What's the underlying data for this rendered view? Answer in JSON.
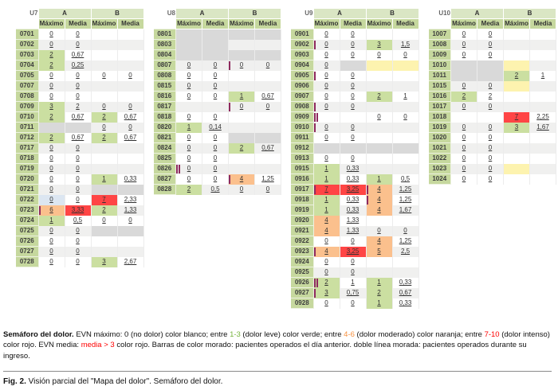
{
  "table_headers": {
    "groups": [
      "A",
      "B"
    ],
    "subcolumns": [
      "Máximo",
      "Media",
      "Máximo",
      "Media"
    ]
  },
  "tables": [
    {
      "unit": "U7",
      "rows": [
        {
          "id": "0701",
          "c": [
            "0",
            "0",
            null,
            null
          ]
        },
        {
          "id": "0702",
          "c": [
            "0",
            "0",
            null,
            null
          ]
        },
        {
          "id": "0703",
          "c": [
            [
              "2",
              "g"
            ],
            "0,67",
            null,
            null
          ]
        },
        {
          "id": "0704",
          "c": [
            [
              "2",
              "g"
            ],
            "0,25",
            null,
            null
          ]
        },
        {
          "id": "0705",
          "c": [
            "0",
            "0",
            "0",
            "0"
          ]
        },
        {
          "id": "0707",
          "c": [
            "0",
            "0",
            null,
            null
          ]
        },
        {
          "id": "0708",
          "c": [
            "0",
            "0",
            null,
            null
          ]
        },
        {
          "id": "0709",
          "c": [
            [
              "3",
              "g"
            ],
            "2",
            "0",
            "0"
          ]
        },
        {
          "id": "0710",
          "c": [
            [
              "2",
              "g"
            ],
            "0,67",
            [
              "2",
              "g"
            ],
            "0,67"
          ]
        },
        {
          "id": "0711",
          "c": [
            [
              "",
              "e"
            ],
            [
              "",
              "e"
            ],
            "0",
            "0"
          ]
        },
        {
          "id": "0712",
          "c": [
            [
              "2",
              "g"
            ],
            "0,67",
            [
              "2",
              "g"
            ],
            "0,67"
          ]
        },
        {
          "id": "0717",
          "c": [
            "0",
            "0",
            null,
            null
          ]
        },
        {
          "id": "0718",
          "c": [
            "0",
            "0",
            null,
            null
          ]
        },
        {
          "id": "0719",
          "c": [
            "0",
            "0",
            null,
            null
          ]
        },
        {
          "id": "0720",
          "c": [
            "0",
            "0",
            [
              "1",
              "g"
            ],
            "0,33"
          ]
        },
        {
          "id": "0721",
          "c": [
            "0",
            "0",
            [
              "",
              "e"
            ],
            [
              "",
              "e"
            ]
          ]
        },
        {
          "id": "0722",
          "c": [
            [
              "0",
              "b"
            ],
            "0",
            [
              "7",
              "r"
            ],
            "2,33"
          ]
        },
        {
          "id": "0723",
          "c": [
            [
              "6",
              "o",
              "1"
            ],
            [
              "3,33",
              "r"
            ],
            [
              "2",
              "g"
            ],
            "1,33"
          ]
        },
        {
          "id": "0724",
          "c": [
            [
              "1",
              "g"
            ],
            "0,5",
            "0",
            "0"
          ]
        },
        {
          "id": "0725",
          "c": [
            "0",
            "0",
            [
              "",
              "e"
            ],
            [
              "",
              "e"
            ]
          ]
        },
        {
          "id": "0726",
          "c": [
            "0",
            "0",
            null,
            null
          ]
        },
        {
          "id": "0727",
          "c": [
            "0",
            "0",
            null,
            null
          ]
        },
        {
          "id": "0728",
          "c": [
            "0",
            "0",
            [
              "3",
              "g"
            ],
            "2,67"
          ]
        }
      ]
    },
    {
      "unit": "U8",
      "rows": [
        {
          "id": "0801",
          "c": [
            [
              "",
              "e"
            ],
            [
              "",
              "e"
            ],
            [
              "",
              "e"
            ],
            [
              "",
              "e"
            ]
          ]
        },
        {
          "id": "0803",
          "c": [
            [
              "",
              "e"
            ],
            [
              "",
              "e"
            ],
            null,
            null
          ]
        },
        {
          "id": "0804",
          "c": [
            [
              "",
              "e"
            ],
            [
              "",
              "e"
            ],
            [
              "",
              "e"
            ],
            [
              "",
              "e"
            ]
          ]
        },
        {
          "id": "0807",
          "c": [
            "0",
            "0",
            [
              "0",
              "",
              "1"
            ],
            "0"
          ]
        },
        {
          "id": "0808",
          "c": [
            "0",
            "0",
            null,
            null
          ]
        },
        {
          "id": "0815",
          "c": [
            "0",
            "0",
            null,
            null
          ]
        },
        {
          "id": "0816",
          "c": [
            "0",
            "0",
            [
              "1",
              "g"
            ],
            "0,67"
          ]
        },
        {
          "id": "0817",
          "c": [
            null,
            null,
            [
              "0",
              "",
              "1"
            ],
            "0"
          ]
        },
        {
          "id": "0818",
          "c": [
            "0",
            "0",
            null,
            null
          ]
        },
        {
          "id": "0820",
          "c": [
            [
              "1",
              "g"
            ],
            "0,14",
            null,
            null
          ]
        },
        {
          "id": "0821",
          "c": [
            "0",
            "0",
            [
              "",
              "e"
            ],
            [
              "",
              "e"
            ]
          ]
        },
        {
          "id": "0824",
          "c": [
            "0",
            "0",
            [
              "2",
              "g"
            ],
            "0,67"
          ]
        },
        {
          "id": "0825",
          "c": [
            "0",
            "0",
            null,
            null
          ]
        },
        {
          "id": "0826",
          "c": [
            [
              "0",
              "",
              "2"
            ],
            "0",
            null,
            null
          ]
        },
        {
          "id": "0827",
          "c": [
            "0",
            "0",
            [
              "4",
              "o",
              "1"
            ],
            "1,25"
          ]
        },
        {
          "id": "0828",
          "c": [
            [
              "2",
              "g"
            ],
            "0,5",
            "0",
            "0"
          ]
        }
      ]
    },
    {
      "unit": "U9",
      "rows": [
        {
          "id": "0901",
          "c": [
            "0",
            "0",
            null,
            null
          ]
        },
        {
          "id": "0902",
          "c": [
            [
              "0",
              "",
              "1"
            ],
            "0",
            [
              "3",
              "g"
            ],
            "1,5"
          ]
        },
        {
          "id": "0903",
          "c": [
            "0",
            "0",
            "0",
            "0"
          ]
        },
        {
          "id": "0904",
          "c": [
            "0",
            [
              "",
              "e"
            ],
            [
              "",
              "y"
            ],
            [
              "",
              "y"
            ]
          ]
        },
        {
          "id": "0905",
          "c": [
            [
              "0",
              "",
              "1"
            ],
            "0",
            null,
            null
          ]
        },
        {
          "id": "0906",
          "c": [
            "0",
            "0",
            null,
            null
          ]
        },
        {
          "id": "0907",
          "c": [
            "0",
            "0",
            [
              "2",
              "g"
            ],
            "1"
          ]
        },
        {
          "id": "0908",
          "c": [
            [
              "0",
              "",
              "1"
            ],
            "0",
            null,
            null
          ]
        },
        {
          "id": "0909",
          "c": [
            [
              "",
              "",
              "2"
            ],
            "",
            "0",
            "0"
          ]
        },
        {
          "id": "0910",
          "c": [
            [
              "0",
              "",
              "1"
            ],
            "0",
            null,
            null
          ]
        },
        {
          "id": "0911",
          "c": [
            "0",
            "0",
            null,
            null
          ]
        },
        {
          "id": "0912",
          "c": [
            [
              "",
              "e"
            ],
            [
              "",
              "e"
            ],
            [
              "",
              "e"
            ],
            [
              "",
              "e"
            ]
          ]
        },
        {
          "id": "0913",
          "c": [
            "0",
            "0",
            null,
            null
          ]
        },
        {
          "id": "0915",
          "c": [
            [
              "1",
              "g"
            ],
            "0,33",
            null,
            null
          ]
        },
        {
          "id": "0916",
          "c": [
            [
              "1",
              "g"
            ],
            "0,33",
            [
              "1",
              "g"
            ],
            "0,5"
          ]
        },
        {
          "id": "0917",
          "c": [
            [
              "7",
              "r",
              "1"
            ],
            [
              "3,25",
              "r"
            ],
            [
              "4",
              "o",
              "1"
            ],
            "1,25"
          ]
        },
        {
          "id": "0918",
          "c": [
            [
              "1",
              "g"
            ],
            "0,33",
            [
              "4",
              "o",
              "1"
            ],
            "1,25"
          ]
        },
        {
          "id": "0919",
          "c": [
            [
              "1",
              "g"
            ],
            "0,33",
            [
              "4",
              "o"
            ],
            "1,67"
          ]
        },
        {
          "id": "0920",
          "c": [
            [
              "4",
              "o"
            ],
            "1,33",
            null,
            null
          ]
        },
        {
          "id": "0921",
          "c": [
            [
              "4",
              "o"
            ],
            "1,33",
            "0",
            "0"
          ]
        },
        {
          "id": "0922",
          "c": [
            "0",
            "0",
            [
              "4",
              "o"
            ],
            "1,25"
          ]
        },
        {
          "id": "0923",
          "c": [
            [
              "4",
              "o",
              "1"
            ],
            [
              "3,25",
              "r"
            ],
            [
              "5",
              "o"
            ],
            "2,5"
          ]
        },
        {
          "id": "0924",
          "c": [
            "0",
            "0",
            null,
            null
          ]
        },
        {
          "id": "0925",
          "c": [
            "0",
            "0",
            null,
            null
          ]
        },
        {
          "id": "0926",
          "c": [
            [
              "2",
              "g",
              "2"
            ],
            "1",
            [
              "1",
              "g"
            ],
            "0,33"
          ]
        },
        {
          "id": "0927",
          "c": [
            [
              "3",
              "g",
              "1"
            ],
            "0,75",
            [
              "2",
              "g"
            ],
            "0,67"
          ]
        },
        {
          "id": "0928",
          "c": [
            "0",
            "0",
            [
              "1",
              "g"
            ],
            "0,33"
          ]
        }
      ]
    },
    {
      "unit": "U10",
      "rows": [
        {
          "id": "1007",
          "c": [
            "0",
            "0",
            null,
            null
          ]
        },
        {
          "id": "1008",
          "c": [
            "0",
            "0",
            null,
            null
          ]
        },
        {
          "id": "1009",
          "c": [
            "0",
            "0",
            null,
            null
          ]
        },
        {
          "id": "1010",
          "c": [
            [
              "",
              "e"
            ],
            [
              "",
              "e"
            ],
            [
              "",
              "y"
            ],
            null
          ]
        },
        {
          "id": "1011",
          "c": [
            [
              "",
              "e"
            ],
            [
              "",
              "e"
            ],
            [
              "2",
              "g"
            ],
            "1"
          ]
        },
        {
          "id": "1015",
          "c": [
            "0",
            "0",
            [
              "",
              "y"
            ],
            null
          ]
        },
        {
          "id": "1016",
          "c": [
            [
              "2",
              "g"
            ],
            "2",
            null,
            null
          ]
        },
        {
          "id": "1017",
          "c": [
            "0",
            "0",
            null,
            null
          ]
        },
        {
          "id": "1018",
          "c": [
            null,
            null,
            [
              "7",
              "r"
            ],
            "2,25"
          ]
        },
        {
          "id": "1019",
          "c": [
            "0",
            "0",
            [
              "3",
              "g"
            ],
            "1,67"
          ]
        },
        {
          "id": "1020",
          "c": [
            "0",
            "0",
            null,
            null
          ]
        },
        {
          "id": "1021",
          "c": [
            "0",
            "0",
            null,
            null
          ]
        },
        {
          "id": "1022",
          "c": [
            "0",
            "0",
            null,
            null
          ]
        },
        {
          "id": "1023",
          "c": [
            "0",
            "0",
            [
              "",
              "y"
            ],
            null
          ]
        },
        {
          "id": "1024",
          "c": [
            "0",
            "0",
            null,
            null
          ]
        }
      ]
    }
  ],
  "legend": {
    "title": "Semáforo del dolor.",
    "segments": [
      {
        "t": " EVN máximo: 0 (no dolor) color blanco; entre "
      },
      {
        "t": "1-3",
        "c": "legend_green"
      },
      {
        "t": " (dolor leve) color verde; entre "
      },
      {
        "t": "4-6",
        "c": "legend_orange"
      },
      {
        "t": " (dolor moderado) color naranja; entre "
      },
      {
        "t": "7-10",
        "c": "legend_red"
      },
      {
        "t": " (dolor intenso) color rojo. EVN media: "
      },
      {
        "t": "media > 3",
        "c": "legend_red"
      },
      {
        "t": " color rojo. Barras de color morado: pacientes operados el día anterior. doble línea morada: pacientes operados durante su ingreso."
      }
    ]
  },
  "figure_caption": {
    "label": "Fig. 2.",
    "text": " Visión parcial del \"Mapa del dolor\". Semáforo del dolor."
  },
  "colors": {
    "header_green": "#dae6c4",
    "subheader_green": "#c6d89e",
    "id_green": "#c6d89e",
    "cell_green": "#cbdfa1",
    "cell_orange": "#fbc08d",
    "cell_red": "#ff4545",
    "cell_yellow": "#fdf3af",
    "cell_gray": "#d9d9d9",
    "cell_blue": "#dce6f1",
    "stripe": "#f0f0ef",
    "morado": "#8e2a5e",
    "legend_green": "#77b43f",
    "legend_orange": "#f7903e",
    "legend_red": "#fe0000"
  }
}
